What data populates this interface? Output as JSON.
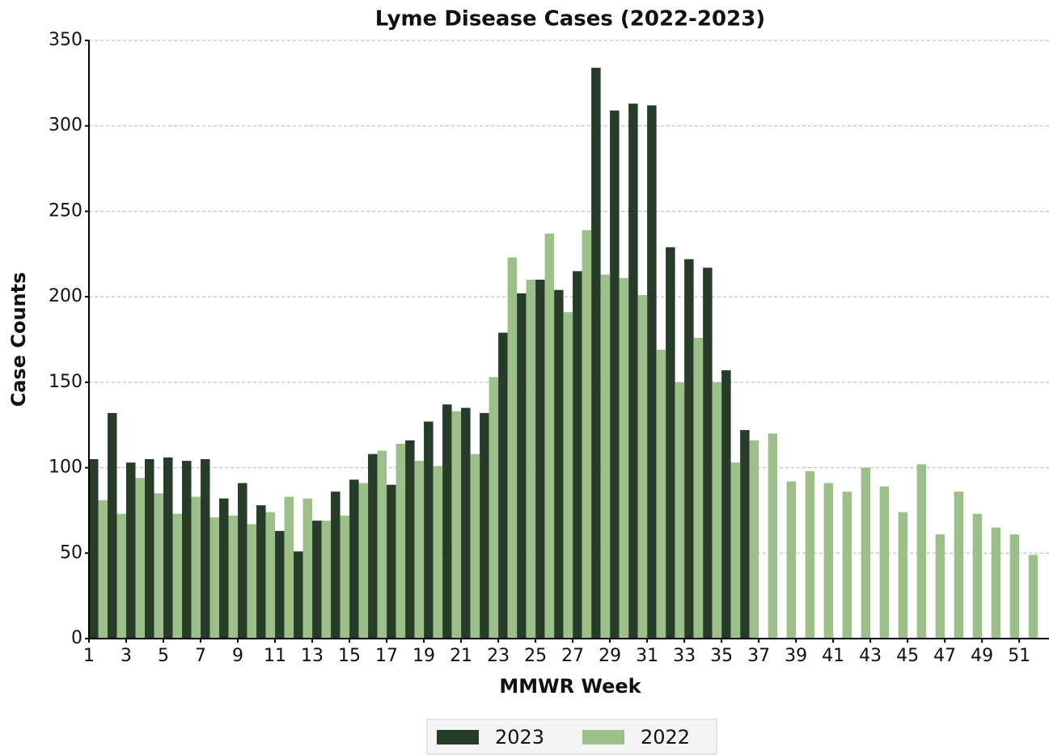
{
  "chart_data": {
    "type": "bar",
    "title": "Lyme Disease Cases (2022-2023)",
    "x_label": "MMWR Week",
    "y_label": "Case Counts",
    "x": [
      1,
      2,
      3,
      4,
      5,
      6,
      7,
      8,
      9,
      10,
      11,
      12,
      13,
      14,
      15,
      16,
      17,
      18,
      19,
      20,
      21,
      22,
      23,
      24,
      25,
      26,
      27,
      28,
      29,
      30,
      31,
      32,
      33,
      34,
      35,
      36,
      37,
      38,
      39,
      40,
      41,
      42,
      43,
      44,
      45,
      46,
      47,
      48,
      49,
      50,
      51
    ],
    "series": [
      {
        "name": "2023",
        "color": "#263c28",
        "values": [
          105,
          132,
          103,
          105,
          106,
          104,
          105,
          82,
          91,
          78,
          63,
          51,
          69,
          86,
          93,
          108,
          90,
          116,
          127,
          137,
          135,
          132,
          179,
          202,
          210,
          204,
          215,
          334,
          309,
          313,
          312,
          229,
          222,
          217,
          157,
          122,
          null,
          null,
          null,
          null,
          null,
          null,
          null,
          null,
          null,
          null,
          null,
          null,
          null,
          null,
          null
        ]
      },
      {
        "name": "2022",
        "color": "#9dc08b",
        "values": [
          81,
          73,
          94,
          85,
          73,
          83,
          71,
          72,
          67,
          74,
          83,
          82,
          69,
          72,
          91,
          110,
          114,
          104,
          101,
          133,
          108,
          153,
          223,
          210,
          237,
          191,
          239,
          213,
          211,
          201,
          169,
          150,
          176,
          150,
          103,
          116,
          120,
          92,
          98,
          91,
          86,
          100,
          89,
          74,
          102,
          61,
          86,
          73,
          65,
          61,
          49
        ]
      }
    ],
    "xlim": [
      1,
      52.6
    ],
    "xticks": [
      1,
      3,
      5,
      7,
      9,
      11,
      13,
      15,
      17,
      19,
      21,
      23,
      25,
      27,
      29,
      31,
      33,
      35,
      37,
      39,
      41,
      43,
      45,
      47,
      49,
      51
    ],
    "ylim": [
      0,
      350
    ],
    "yticks": [
      0,
      50,
      100,
      150,
      200,
      250,
      300,
      350
    ],
    "grid": true,
    "legend": "bottom"
  }
}
